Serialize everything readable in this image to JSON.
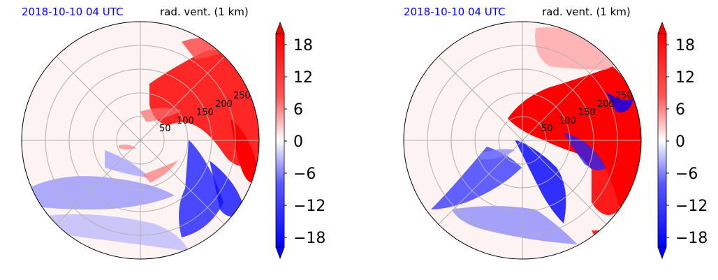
{
  "chart_data": [
    {
      "type": "heatmap",
      "projection": "polar",
      "title_left": "2018-10-10 04 UTC",
      "title_right": "rad. vent. (1 km)",
      "radial_ticks": [
        "50",
        "100",
        "150",
        "200",
        "250"
      ],
      "colorbar": {
        "ticks": [
          "18",
          "12",
          "6",
          "0",
          "−6",
          "−12",
          "−18"
        ],
        "tick_values": [
          18,
          12,
          6,
          0,
          -6,
          -12,
          -18
        ],
        "range": [
          -21,
          21
        ],
        "extend": "both",
        "cmap": "bwr"
      },
      "colors": {
        "positive": "#ff0000",
        "negative": "#0000ff",
        "neutral": "#ffffff",
        "grid": "#b0b0b0"
      }
    },
    {
      "type": "heatmap",
      "projection": "polar",
      "title_left": "2018-10-10 04 UTC",
      "title_right": "rad. vent. (1 km)",
      "radial_ticks": [
        "50",
        "100",
        "150",
        "200",
        "250"
      ],
      "colorbar": {
        "ticks": [
          "18",
          "12",
          "6",
          "0",
          "−6",
          "−12",
          "−18"
        ],
        "tick_values": [
          18,
          12,
          6,
          0,
          -6,
          -12,
          -18
        ],
        "range": [
          -21,
          21
        ],
        "extend": "both",
        "cmap": "bwr"
      },
      "colors": {
        "positive": "#ff0000",
        "negative": "#0000ff",
        "neutral": "#ffffff",
        "grid": "#b0b0b0"
      }
    }
  ]
}
